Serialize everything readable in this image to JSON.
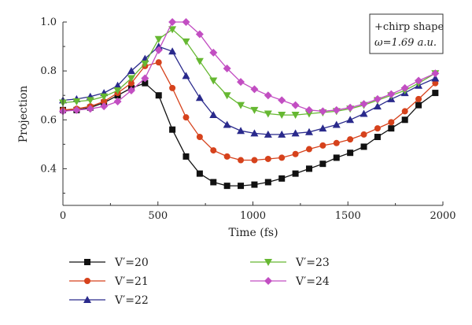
{
  "chart_data": {
    "type": "line",
    "xlabel": "Time (fs)",
    "ylabel": "Projection",
    "xlim": [
      0,
      2000
    ],
    "ylim": [
      0.25,
      1.0
    ],
    "xticks": [
      0,
      500,
      1000,
      1500,
      2000
    ],
    "yticks": [
      0.4,
      0.6,
      0.8,
      1.0
    ],
    "xtick_labels": [
      "0",
      "500",
      "1000",
      "1500",
      "2000"
    ],
    "ytick_labels": [
      "0.4",
      "0.6",
      "0.8",
      "1.0"
    ],
    "grid": false,
    "legend_placement": "bottom",
    "annotation": {
      "line1": "+chirp shape",
      "line2": "ω=1.69 a.u."
    },
    "x": [
      0,
      72,
      144,
      216,
      288,
      360,
      432,
      504,
      576,
      648,
      720,
      792,
      864,
      936,
      1008,
      1080,
      1152,
      1224,
      1296,
      1368,
      1440,
      1512,
      1584,
      1656,
      1728,
      1800,
      1872,
      1960
    ],
    "series": [
      {
        "name": "V′=20",
        "color": "#111111",
        "marker": "square",
        "values": [
          0.64,
          0.64,
          0.65,
          0.67,
          0.7,
          0.73,
          0.75,
          0.7,
          0.56,
          0.45,
          0.38,
          0.345,
          0.33,
          0.33,
          0.335,
          0.345,
          0.36,
          0.38,
          0.4,
          0.42,
          0.445,
          0.465,
          0.49,
          0.53,
          0.565,
          0.6,
          0.66,
          0.71
        ]
      },
      {
        "name": "V′=21",
        "color": "#d6421c",
        "marker": "circle",
        "values": [
          0.64,
          0.645,
          0.655,
          0.675,
          0.71,
          0.75,
          0.82,
          0.835,
          0.73,
          0.61,
          0.53,
          0.475,
          0.45,
          0.435,
          0.435,
          0.44,
          0.445,
          0.46,
          0.48,
          0.495,
          0.505,
          0.52,
          0.54,
          0.565,
          0.59,
          0.635,
          0.685,
          0.75
        ]
      },
      {
        "name": "V′=22",
        "color": "#2a2a8c",
        "marker": "triangle-up",
        "values": [
          0.68,
          0.685,
          0.695,
          0.71,
          0.74,
          0.8,
          0.85,
          0.9,
          0.88,
          0.78,
          0.69,
          0.62,
          0.58,
          0.555,
          0.545,
          0.54,
          0.54,
          0.545,
          0.55,
          0.565,
          0.58,
          0.6,
          0.625,
          0.655,
          0.685,
          0.71,
          0.74,
          0.77
        ]
      },
      {
        "name": "V′=23",
        "color": "#66b832",
        "marker": "triangle-down",
        "values": [
          0.67,
          0.675,
          0.68,
          0.695,
          0.72,
          0.77,
          0.83,
          0.93,
          0.97,
          0.92,
          0.84,
          0.76,
          0.7,
          0.66,
          0.64,
          0.625,
          0.62,
          0.62,
          0.625,
          0.63,
          0.635,
          0.645,
          0.66,
          0.68,
          0.7,
          0.72,
          0.75,
          0.79
        ]
      },
      {
        "name": "V′=24",
        "color": "#c24ec2",
        "marker": "diamond",
        "values": [
          0.635,
          0.64,
          0.645,
          0.655,
          0.675,
          0.72,
          0.77,
          0.885,
          1.0,
          1.0,
          0.95,
          0.875,
          0.81,
          0.755,
          0.725,
          0.7,
          0.68,
          0.66,
          0.64,
          0.635,
          0.64,
          0.65,
          0.665,
          0.685,
          0.705,
          0.73,
          0.76,
          0.79
        ]
      }
    ]
  }
}
